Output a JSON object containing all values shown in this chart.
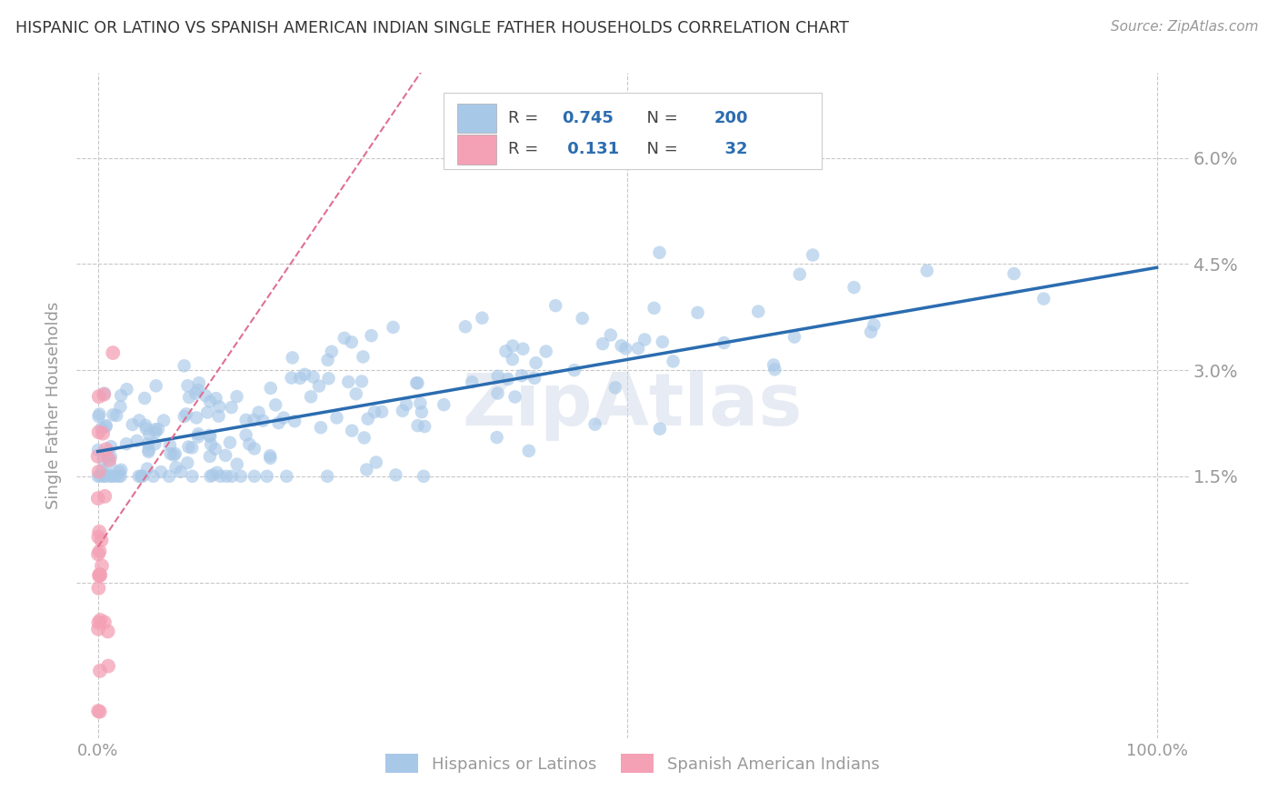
{
  "title": "HISPANIC OR LATINO VS SPANISH AMERICAN INDIAN SINGLE FATHER HOUSEHOLDS CORRELATION CHART",
  "source": "Source: ZipAtlas.com",
  "ylabel": "Single Father Households",
  "blue_color": "#a8c8e8",
  "pink_color": "#f4a0b5",
  "blue_line_color": "#2b6cb0",
  "pink_line_color": "#e07090",
  "R_blue": 0.745,
  "N_blue": 200,
  "R_pink": 0.131,
  "N_pink": 32,
  "watermark": "ZipAtlas",
  "legend_label_blue": "Hispanics or Latinos",
  "legend_label_pink": "Spanish American Indians",
  "background_color": "#ffffff",
  "grid_color": "#c8c8c8",
  "title_color": "#333333",
  "axis_color": "#999999",
  "value_color": "#2b6cb0",
  "blue_trend_intercept": 1.85,
  "blue_trend_slope": 0.026,
  "pink_trend_intercept": 0.5,
  "pink_trend_slope": 0.22,
  "xlim": [
    0,
    100
  ],
  "ylim_min": -2.2,
  "ylim_max": 7.2,
  "ytick_positions": [
    0.0,
    1.5,
    3.0,
    4.5,
    6.0
  ],
  "ytick_labels": [
    "",
    "1.5%",
    "3.0%",
    "4.5%",
    "6.0%"
  ]
}
